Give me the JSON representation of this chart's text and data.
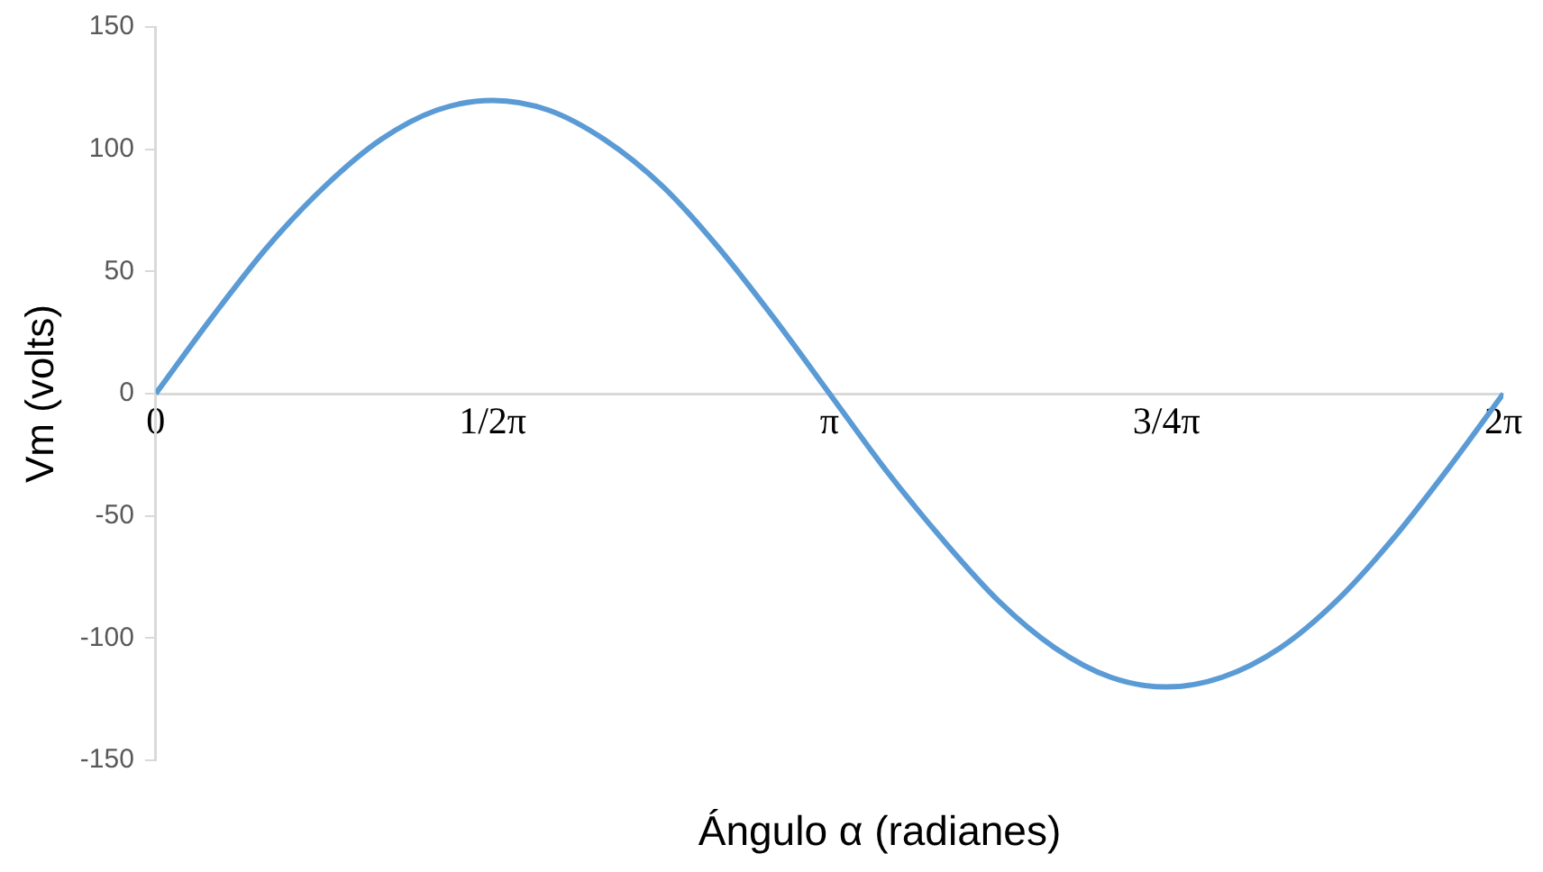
{
  "chart_data": {
    "type": "line",
    "xlabel": "Ángulo α (radianes)",
    "ylabel": "Vm (volts)",
    "x": [
      0,
      0.26,
      0.52,
      0.79,
      1.05,
      1.31,
      1.57,
      1.83,
      2.09,
      2.36,
      2.62,
      2.88,
      3.14,
      3.4,
      3.67,
      3.93,
      4.19,
      4.45,
      4.71,
      4.97,
      5.24,
      5.5,
      5.76,
      6.02,
      6.28
    ],
    "series": [
      {
        "color": "#5b9bd5",
        "values": [
          0,
          31,
          60,
          85,
          104,
          116,
          120,
          116,
          104,
          85,
          60,
          31,
          0,
          -31,
          -60,
          -85,
          -104,
          -116,
          -120,
          -116,
          -104,
          -85,
          -60,
          -31,
          0
        ]
      }
    ],
    "xlim": [
      0,
      6.28
    ],
    "xticks": [
      {
        "value": 0,
        "label": "0"
      },
      {
        "value": 1.57,
        "label": "1/2π"
      },
      {
        "value": 3.14,
        "label": "π"
      },
      {
        "value": 4.71,
        "label": "3/4π"
      },
      {
        "value": 6.28,
        "label": "2π"
      }
    ],
    "ylim": [
      -150,
      150
    ],
    "yticks": [
      -150,
      -100,
      -50,
      0,
      50,
      100,
      150
    ],
    "grid": false,
    "legend": false,
    "marker": "none",
    "line_style": "solid"
  }
}
